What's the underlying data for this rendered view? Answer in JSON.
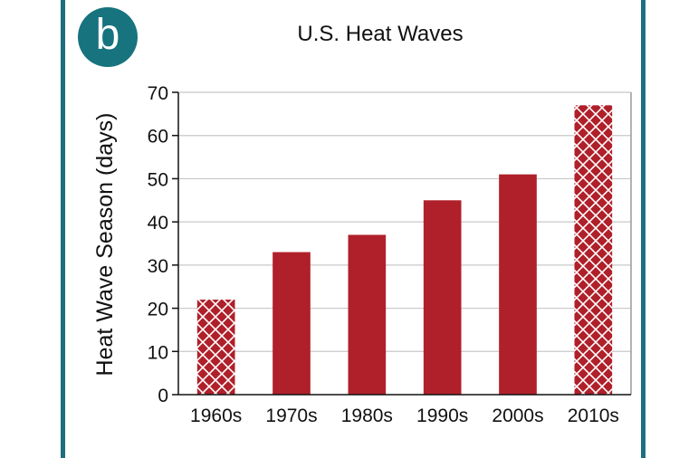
{
  "panel": {
    "badge_label": "b"
  },
  "colors": {
    "frame": "#1d6f7d",
    "badge": "#17737e",
    "bar": "#b0202a",
    "grid": "#c8c8c8"
  },
  "chart_data": {
    "type": "bar",
    "title": "U.S. Heat Waves",
    "xlabel": "",
    "ylabel": "Heat Wave Season (days)",
    "categories": [
      "1960s",
      "1970s",
      "1980s",
      "1990s",
      "2000s",
      "2010s"
    ],
    "values": [
      22,
      33,
      37,
      45,
      51,
      67
    ],
    "patterns": [
      "crosshatch",
      "solid",
      "solid",
      "solid",
      "solid",
      "crosshatch"
    ],
    "ylim": [
      0,
      70
    ],
    "yticks": [
      0,
      10,
      20,
      30,
      40,
      50,
      60,
      70
    ],
    "grid": true
  }
}
